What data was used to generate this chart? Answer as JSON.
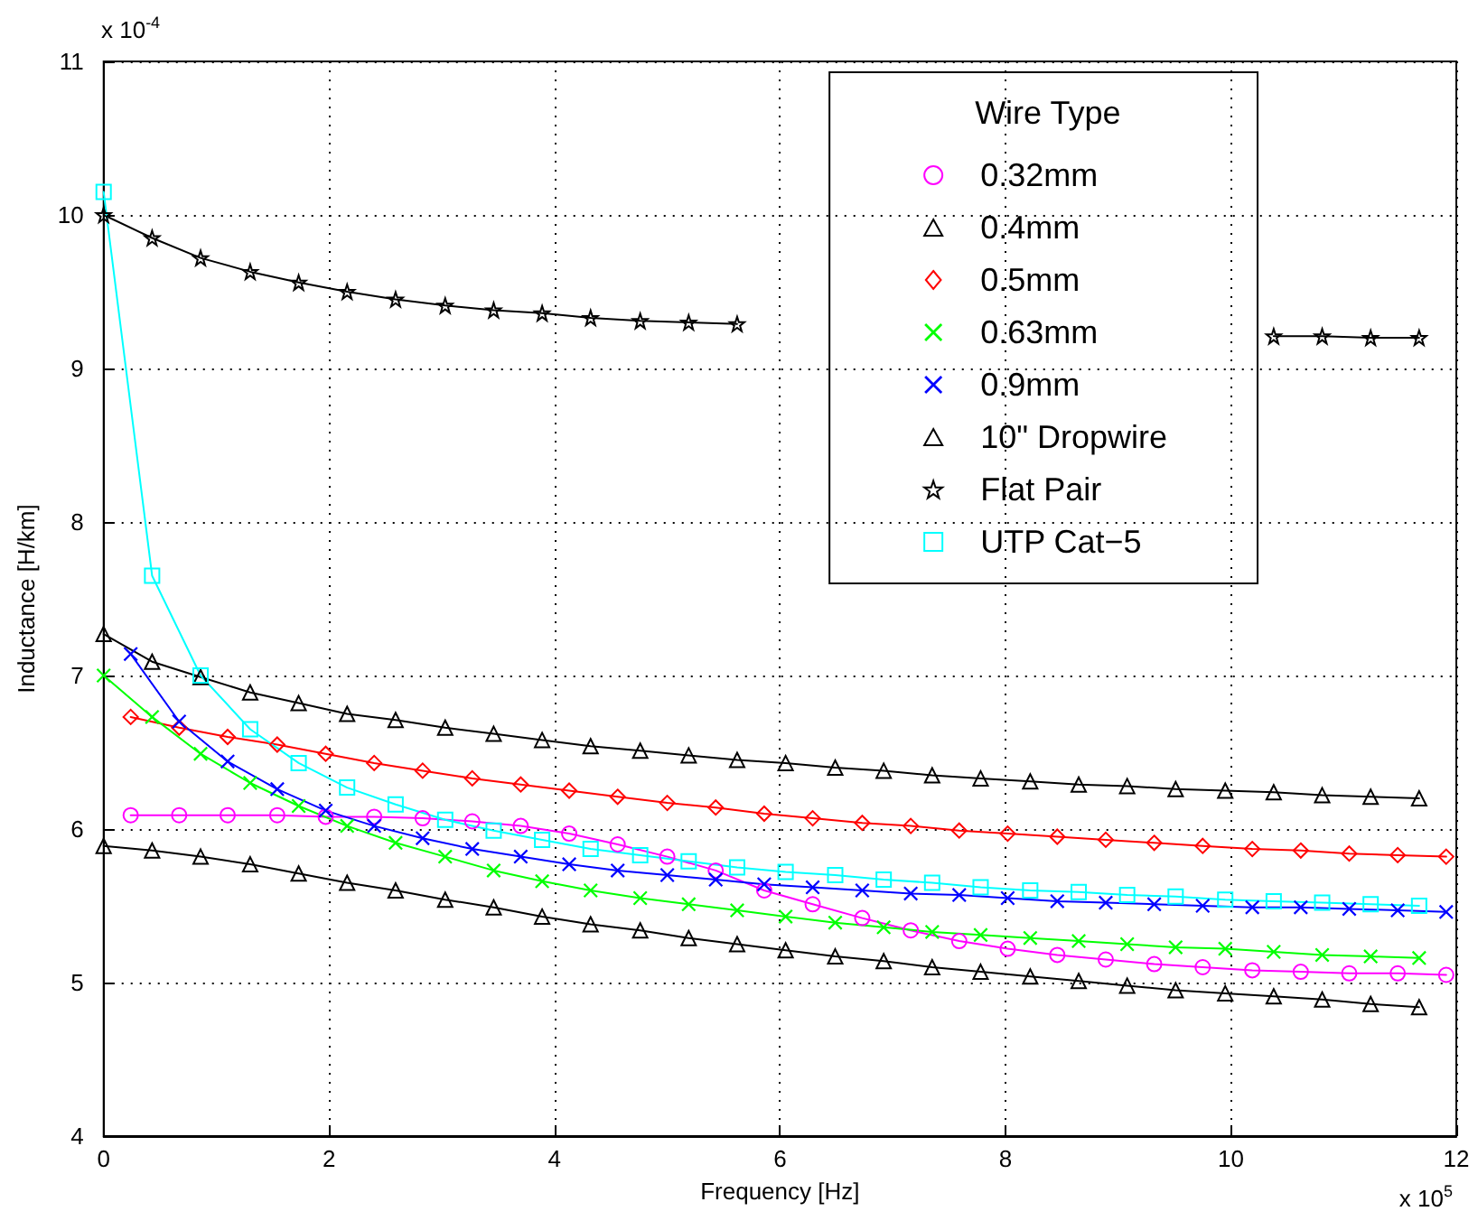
{
  "chart_data": {
    "type": "line",
    "xlabel": "Frequency [Hz]",
    "ylabel": "Inductance [H/km]",
    "legend_title": "Wire Type",
    "annotations": [
      "x 10$^{-4}$",
      "x 10$^{5}$"
    ],
    "xlim": [
      0,
      12
    ],
    "xticks": [
      0,
      2,
      4,
      6,
      8,
      10,
      12
    ],
    "ylim": [
      4,
      11
    ],
    "yticks": [
      4,
      5,
      6,
      7,
      8,
      9,
      10,
      11
    ],
    "grid": true,
    "legend": "top right",
    "line_style": "solid",
    "series": [
      {
        "name": "0.32mm",
        "color": "#ff00ff",
        "marker": "circle",
        "x": [
          0.24,
          0.67,
          1.1,
          1.54,
          1.97,
          2.4,
          2.83,
          3.27,
          3.7,
          4.13,
          4.56,
          5.0,
          5.43,
          5.86,
          6.29,
          6.73,
          7.16,
          7.59,
          8.02,
          8.46,
          8.89,
          9.32,
          9.75,
          10.19,
          10.62,
          11.05,
          11.48,
          11.91
        ],
        "values": [
          6.09,
          6.09,
          6.09,
          6.09,
          6.08,
          6.08,
          6.07,
          6.05,
          6.02,
          5.97,
          5.9,
          5.82,
          5.73,
          5.6,
          5.51,
          5.42,
          5.34,
          5.27,
          5.22,
          5.18,
          5.15,
          5.12,
          5.1,
          5.08,
          5.07,
          5.06,
          5.06,
          5.05
        ]
      },
      {
        "name": "0.4mm",
        "color": "#000000",
        "marker": "triangle",
        "x": [
          0,
          0.43,
          0.86,
          1.3,
          1.73,
          2.16,
          2.59,
          3.03,
          3.46,
          3.89,
          4.32,
          4.76,
          5.19,
          5.62,
          6.05,
          6.49,
          6.92,
          7.35,
          7.78,
          8.22,
          8.65,
          9.08,
          9.51,
          9.95,
          10.38,
          10.81,
          11.24,
          11.67
        ],
        "values": [
          5.89,
          5.86,
          5.82,
          5.77,
          5.71,
          5.65,
          5.6,
          5.54,
          5.49,
          5.43,
          5.38,
          5.34,
          5.29,
          5.25,
          5.21,
          5.17,
          5.14,
          5.1,
          5.07,
          5.04,
          5.01,
          4.98,
          4.95,
          4.93,
          4.91,
          4.89,
          4.86,
          4.84
        ]
      },
      {
        "name": "0.5mm",
        "color": "#ff0000",
        "marker": "diamond",
        "x": [
          0.24,
          0.67,
          1.1,
          1.54,
          1.97,
          2.4,
          2.83,
          3.27,
          3.7,
          4.13,
          4.56,
          5.0,
          5.43,
          5.86,
          6.29,
          6.73,
          7.16,
          7.59,
          8.02,
          8.46,
          8.89,
          9.32,
          9.75,
          10.19,
          10.62,
          11.05,
          11.48,
          11.91
        ],
        "values": [
          6.73,
          6.66,
          6.6,
          6.55,
          6.49,
          6.43,
          6.38,
          6.33,
          6.29,
          6.25,
          6.21,
          6.17,
          6.14,
          6.1,
          6.07,
          6.04,
          6.02,
          5.99,
          5.97,
          5.95,
          5.93,
          5.91,
          5.89,
          5.87,
          5.86,
          5.84,
          5.83,
          5.82
        ]
      },
      {
        "name": "0.63mm",
        "color": "#00ff00",
        "marker": "cross",
        "x": [
          0,
          0.43,
          0.86,
          1.3,
          1.73,
          2.16,
          2.59,
          3.03,
          3.46,
          3.89,
          4.32,
          4.76,
          5.19,
          5.62,
          6.05,
          6.49,
          6.92,
          7.35,
          7.78,
          8.22,
          8.65,
          9.08,
          9.51,
          9.95,
          10.38,
          10.81,
          11.24,
          11.67
        ],
        "values": [
          7.0,
          6.73,
          6.49,
          6.3,
          6.15,
          6.02,
          5.91,
          5.82,
          5.73,
          5.66,
          5.6,
          5.55,
          5.51,
          5.47,
          5.43,
          5.39,
          5.36,
          5.33,
          5.31,
          5.29,
          5.27,
          5.25,
          5.23,
          5.22,
          5.2,
          5.18,
          5.17,
          5.16
        ]
      },
      {
        "name": "0.9mm",
        "color": "#0000ff",
        "marker": "cross",
        "x": [
          0.24,
          0.67,
          1.1,
          1.54,
          1.97,
          2.4,
          2.83,
          3.27,
          3.7,
          4.13,
          4.56,
          5.0,
          5.43,
          5.86,
          6.29,
          6.73,
          7.16,
          7.59,
          8.02,
          8.46,
          8.89,
          9.32,
          9.75,
          10.19,
          10.62,
          11.05,
          11.48,
          11.91
        ],
        "values": [
          7.14,
          6.7,
          6.44,
          6.26,
          6.12,
          6.02,
          5.94,
          5.87,
          5.82,
          5.77,
          5.73,
          5.7,
          5.67,
          5.64,
          5.62,
          5.6,
          5.58,
          5.57,
          5.55,
          5.53,
          5.52,
          5.51,
          5.5,
          5.49,
          5.49,
          5.48,
          5.47,
          5.46
        ]
      },
      {
        "name": "10\" Dropwire",
        "color": "#000000",
        "marker": "triangle",
        "x": [
          0,
          0.43,
          0.86,
          1.3,
          1.73,
          2.16,
          2.59,
          3.03,
          3.46,
          3.89,
          4.32,
          4.76,
          5.19,
          5.62,
          6.05,
          6.49,
          6.92,
          7.35,
          7.78,
          8.22,
          8.65,
          9.08,
          9.51,
          9.95,
          10.38,
          10.81,
          11.24,
          11.67
        ],
        "values": [
          7.27,
          7.09,
          6.99,
          6.89,
          6.82,
          6.75,
          6.71,
          6.66,
          6.62,
          6.58,
          6.54,
          6.51,
          6.48,
          6.45,
          6.43,
          6.4,
          6.38,
          6.35,
          6.33,
          6.31,
          6.29,
          6.28,
          6.26,
          6.25,
          6.24,
          6.22,
          6.21,
          6.2
        ]
      },
      {
        "name": "Flat Pair",
        "color": "#000000",
        "marker": "star",
        "x": [
          0,
          0.43,
          0.86,
          1.3,
          1.73,
          2.16,
          2.59,
          3.03,
          3.46,
          3.89,
          4.32,
          4.76,
          5.19,
          5.62,
          6.05,
          6.49,
          6.92,
          7.35,
          7.78,
          8.22,
          8.65,
          9.08,
          9.51,
          9.95,
          10.38,
          10.81,
          11.24,
          11.67
        ],
        "values": [
          10.0,
          9.85,
          9.72,
          9.63,
          9.56,
          9.5,
          9.45,
          9.41,
          9.38,
          9.36,
          9.33,
          9.31,
          9.3,
          9.29,
          null,
          null,
          null,
          null,
          null,
          null,
          null,
          null,
          null,
          null,
          9.21,
          9.21,
          9.2,
          9.2
        ]
      },
      {
        "name": "UTP Cat−5",
        "color": "#00ffff",
        "marker": "square",
        "x": [
          0,
          0.43,
          0.86,
          1.3,
          1.73,
          2.16,
          2.59,
          3.03,
          3.46,
          3.89,
          4.32,
          4.76,
          5.19,
          5.62,
          6.05,
          6.49,
          6.92,
          7.35,
          7.78,
          8.22,
          8.65,
          9.08,
          9.51,
          9.95,
          10.38,
          10.81,
          11.24,
          11.67
        ],
        "values": [
          10.15,
          7.65,
          7.0,
          6.65,
          6.43,
          6.27,
          6.16,
          6.06,
          5.99,
          5.93,
          5.87,
          5.83,
          5.79,
          5.75,
          5.72,
          5.7,
          5.67,
          5.65,
          5.62,
          5.6,
          5.59,
          5.57,
          5.56,
          5.54,
          5.53,
          5.52,
          5.51,
          5.5
        ]
      }
    ]
  }
}
